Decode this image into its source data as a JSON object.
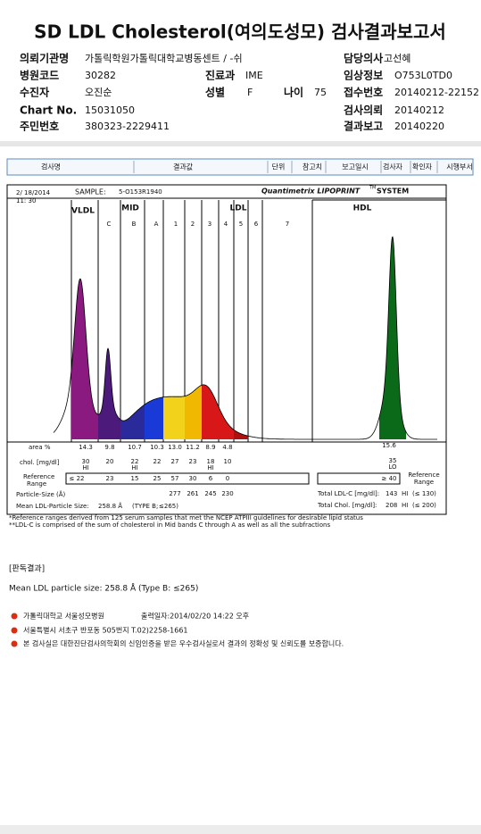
{
  "header": {
    "title": "SD LDL Cholesterol(여의도성모) 검사결과보고서"
  },
  "fields": [
    {
      "label": "의뢰기관명",
      "value": "가톨릭학원가톨릭대학교병동센트 / -쉬"
    },
    {
      "label": "담당의사",
      "value": "고선혜"
    },
    {
      "label": "병원코드",
      "value": "30282"
    },
    {
      "label": "진료과",
      "value": "IME"
    },
    {
      "label": "임상정보",
      "value": "O753L0TD0"
    },
    {
      "label": "수진자",
      "value": "오진순"
    },
    {
      "label": "성별",
      "value": "F"
    },
    {
      "label": "나이",
      "value": "75"
    },
    {
      "label": "접수번호",
      "value": "20140212-22152"
    },
    {
      "label": "Chart No.",
      "value": "15031050"
    },
    {
      "label": "검사의뢰",
      "value": "20140212"
    },
    {
      "label": "주민번호",
      "value": "380323-2229411"
    },
    {
      "label": "결과보고",
      "value": "20140220"
    }
  ],
  "columns": [
    "검사명",
    "결과값",
    "단위",
    "참고치",
    "보고일시",
    "검사자",
    "확인자",
    "시행부서"
  ],
  "report": {
    "date": "2/ 18/2014",
    "time": "11: 30",
    "sample_label": "SAMPLE:",
    "sample": "5-O153R1940",
    "brand": "Quantimetrix LIPOPRINT",
    "brand_tm": "TM",
    "brand_system": "SYSTEM",
    "groups": [
      "VLDL",
      "MID",
      "LDL",
      "HDL"
    ],
    "bands": [
      "C",
      "B",
      "A",
      "1",
      "2",
      "3",
      "4",
      "5",
      "6",
      "7"
    ],
    "area_label": "area %",
    "area": [
      "14.3",
      "9.8",
      "10.7",
      "10.3",
      "13.0",
      "11.2",
      "8.9",
      "4.8"
    ],
    "area_hdl": "15.6",
    "chol_label": "chol. [mg/dl]",
    "chol": [
      "30",
      "20",
      "22",
      "22",
      "27",
      "23",
      "18",
      "10"
    ],
    "chol_hdl": "35",
    "chol_flags": [
      "HI",
      null,
      "HI",
      null,
      null,
      null,
      "HI",
      null
    ],
    "hdl_flag": "LO",
    "ref_label": [
      "Reference",
      "Range"
    ],
    "ref": [
      "≤ 22",
      "23",
      "15",
      "25",
      "57",
      "30",
      "6",
      "0"
    ],
    "ref_hdl": "≥ 40",
    "ref_side": [
      "Reference",
      "Range"
    ],
    "size_label": "Particle-Size (Å)",
    "size": [
      "277",
      "261",
      "245",
      "230"
    ],
    "mean_label": "Mean LDL-Particle Size:",
    "mean_value": "258.8 Å",
    "mean_type": "(TYPE B;",
    "mean_ref": "≤265)",
    "ldl_label": "Total LDL-C [mg/dl]:",
    "ldl_value": "143",
    "ldl_flag": "HI",
    "ldl_ref": "(≤ 130)",
    "tc_label": "Total Chol. [mg/dl]:",
    "tc_value": "208",
    "tc_flag": "HI",
    "tc_ref": "(≤ 200)",
    "notes": [
      "*Reference ranges derived from 125 serum samples that met the NCEP ATPIII guidelines for desirable lipid status",
      "**LDL-C is comprised of the sum of cholesterol in Mid bands C through A as well as all the subfractions"
    ]
  },
  "interpretation": {
    "heading": "[판독결과]",
    "text": "Mean LDL particle size: 258.8 Å (Type B: ≤265)"
  },
  "footer": [
    "가톨릭대학교 서울성모병원",
    "출력일자:2014/02/20 14:22 오후",
    "서울특별시 서초구 반포동 505번지 T.02)2258-1661",
    "본 검사실은 대한진단검사의학회의 신임인증을 받은 우수검사실로서 결과의 정확성 및 신뢰도를 보증합니다."
  ]
}
